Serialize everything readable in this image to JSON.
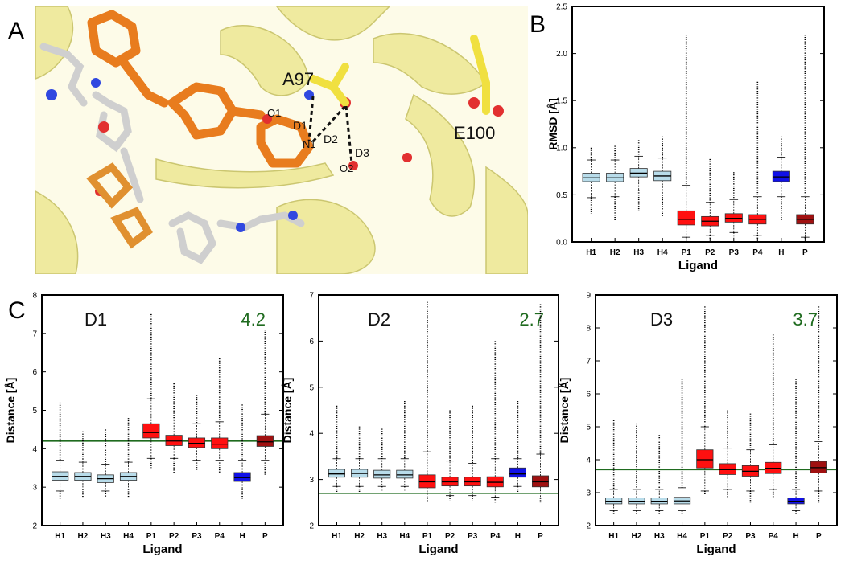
{
  "panel_labels": {
    "a": "A",
    "b": "B",
    "c": "C"
  },
  "structure_labels": {
    "a97": "A97",
    "e100": "E100",
    "o1": "O1",
    "n1": "N1",
    "o2": "O2",
    "d1": "D1",
    "d2": "D2",
    "d3": "D3"
  },
  "colors": {
    "light_blue": "#b8dcea",
    "red": "#ff1010",
    "blue": "#1010e8",
    "dark_red": "#a01010",
    "reference_line": "#1f6b1f",
    "reference_text": "#1f6b1f",
    "protein": "#f4f0a8",
    "ligand_orange": "#e87c1e"
  },
  "chart_data": [
    {
      "id": "rmsd",
      "type": "box",
      "title": "",
      "xlabel": "Ligand",
      "ylabel": "RMSD [Å]",
      "ylim": [
        0,
        2.5
      ],
      "yticks": [
        0.0,
        0.5,
        1.0,
        1.5,
        2.0,
        2.5
      ],
      "ytick_labels": [
        "0.0",
        "0.5",
        "1.0",
        "1.5",
        "2.0",
        "2.5"
      ],
      "categories": [
        "H1",
        "H2",
        "H3",
        "H4",
        "P1",
        "P2",
        "P3",
        "P4",
        "H",
        "P"
      ],
      "box_colors": [
        "light_blue",
        "light_blue",
        "light_blue",
        "light_blue",
        "red",
        "red",
        "red",
        "red",
        "blue",
        "dark_red"
      ],
      "boxes": [
        {
          "q1": 0.64,
          "median": 0.68,
          "q3": 0.73,
          "whisker_low": 0.47,
          "whisker_high": 0.87,
          "out_low": 0.3,
          "out_high": 1.0
        },
        {
          "q1": 0.64,
          "median": 0.68,
          "q3": 0.73,
          "whisker_low": 0.48,
          "whisker_high": 0.87,
          "out_low": 0.22,
          "out_high": 1.02
        },
        {
          "q1": 0.69,
          "median": 0.73,
          "q3": 0.78,
          "whisker_low": 0.55,
          "whisker_high": 0.91,
          "out_low": 0.33,
          "out_high": 1.08
        },
        {
          "q1": 0.65,
          "median": 0.7,
          "q3": 0.75,
          "whisker_low": 0.5,
          "whisker_high": 0.89,
          "out_low": 0.27,
          "out_high": 1.12
        },
        {
          "q1": 0.18,
          "median": 0.24,
          "q3": 0.33,
          "whisker_low": 0.05,
          "whisker_high": 0.6,
          "out_low": 0.02,
          "out_high": 2.2
        },
        {
          "q1": 0.17,
          "median": 0.22,
          "q3": 0.27,
          "whisker_low": 0.07,
          "whisker_high": 0.42,
          "out_low": 0.03,
          "out_high": 0.88
        },
        {
          "q1": 0.21,
          "median": 0.25,
          "q3": 0.3,
          "whisker_low": 0.1,
          "whisker_high": 0.45,
          "out_low": 0.05,
          "out_high": 0.74
        },
        {
          "q1": 0.19,
          "median": 0.24,
          "q3": 0.29,
          "whisker_low": 0.07,
          "whisker_high": 0.48,
          "out_low": 0.03,
          "out_high": 1.7
        },
        {
          "q1": 0.64,
          "median": 0.69,
          "q3": 0.75,
          "whisker_low": 0.48,
          "whisker_high": 0.9,
          "out_low": 0.22,
          "out_high": 1.12
        },
        {
          "q1": 0.19,
          "median": 0.24,
          "q3": 0.29,
          "whisker_low": 0.05,
          "whisker_high": 0.48,
          "out_low": 0.02,
          "out_high": 2.2
        }
      ],
      "reference_line": null,
      "reference_label": ""
    },
    {
      "id": "D1",
      "type": "box",
      "title": "D1",
      "xlabel": "Ligand",
      "ylabel": "Distance [Å]",
      "ylim": [
        2,
        8
      ],
      "yticks": [
        2,
        3,
        4,
        5,
        6,
        7,
        8
      ],
      "ytick_labels": [
        "2",
        "3",
        "4",
        "5",
        "6",
        "7",
        "8"
      ],
      "categories": [
        "H1",
        "H2",
        "H3",
        "H4",
        "P1",
        "P2",
        "P3",
        "P4",
        "H",
        "P"
      ],
      "box_colors": [
        "light_blue",
        "light_blue",
        "light_blue",
        "light_blue",
        "red",
        "red",
        "red",
        "red",
        "blue",
        "dark_red"
      ],
      "boxes": [
        {
          "q1": 3.18,
          "median": 3.28,
          "q3": 3.4,
          "whisker_low": 2.9,
          "whisker_high": 3.7,
          "out_low": 2.7,
          "out_high": 5.2
        },
        {
          "q1": 3.18,
          "median": 3.28,
          "q3": 3.38,
          "whisker_low": 2.95,
          "whisker_high": 3.65,
          "out_low": 2.75,
          "out_high": 4.45
        },
        {
          "q1": 3.12,
          "median": 3.22,
          "q3": 3.32,
          "whisker_low": 2.9,
          "whisker_high": 3.6,
          "out_low": 2.75,
          "out_high": 4.5
        },
        {
          "q1": 3.18,
          "median": 3.28,
          "q3": 3.38,
          "whisker_low": 2.95,
          "whisker_high": 3.65,
          "out_low": 2.75,
          "out_high": 4.8
        },
        {
          "q1": 4.28,
          "median": 4.42,
          "q3": 4.65,
          "whisker_low": 3.75,
          "whisker_high": 5.3,
          "out_low": 3.5,
          "out_high": 7.5
        },
        {
          "q1": 4.08,
          "median": 4.2,
          "q3": 4.35,
          "whisker_low": 3.75,
          "whisker_high": 4.75,
          "out_low": 3.35,
          "out_high": 5.7
        },
        {
          "q1": 4.03,
          "median": 4.14,
          "q3": 4.28,
          "whisker_low": 3.7,
          "whisker_high": 4.65,
          "out_low": 3.45,
          "out_high": 5.4
        },
        {
          "q1": 4.0,
          "median": 4.12,
          "q3": 4.28,
          "whisker_low": 3.7,
          "whisker_high": 4.7,
          "out_low": 3.35,
          "out_high": 6.35
        },
        {
          "q1": 3.15,
          "median": 3.25,
          "q3": 3.38,
          "whisker_low": 2.95,
          "whisker_high": 3.7,
          "out_low": 2.7,
          "out_high": 5.15
        },
        {
          "q1": 4.06,
          "median": 4.18,
          "q3": 4.34,
          "whisker_low": 3.7,
          "whisker_high": 4.9,
          "out_low": 3.3,
          "out_high": 7.1
        }
      ],
      "reference_line": 4.2,
      "reference_label": "4.2"
    },
    {
      "id": "D2",
      "type": "box",
      "title": "D2",
      "xlabel": "Ligand",
      "ylabel": "Distance [Å]",
      "ylim": [
        2,
        7
      ],
      "yticks": [
        2,
        3,
        4,
        5,
        6,
        7
      ],
      "ytick_labels": [
        "2",
        "3",
        "4",
        "5",
        "6",
        "7"
      ],
      "categories": [
        "H1",
        "H2",
        "H3",
        "H4",
        "P1",
        "P2",
        "P3",
        "P4",
        "H",
        "P"
      ],
      "box_colors": [
        "light_blue",
        "light_blue",
        "light_blue",
        "light_blue",
        "red",
        "red",
        "red",
        "red",
        "blue",
        "dark_red"
      ],
      "boxes": [
        {
          "q1": 3.05,
          "median": 3.12,
          "q3": 3.22,
          "whisker_low": 2.85,
          "whisker_high": 3.45,
          "out_low": 2.7,
          "out_high": 4.6
        },
        {
          "q1": 3.05,
          "median": 3.13,
          "q3": 3.22,
          "whisker_low": 2.85,
          "whisker_high": 3.45,
          "out_low": 2.7,
          "out_high": 4.15
        },
        {
          "q1": 3.03,
          "median": 3.1,
          "q3": 3.2,
          "whisker_low": 2.85,
          "whisker_high": 3.45,
          "out_low": 2.75,
          "out_high": 4.1
        },
        {
          "q1": 3.03,
          "median": 3.1,
          "q3": 3.2,
          "whisker_low": 2.85,
          "whisker_high": 3.45,
          "out_low": 2.75,
          "out_high": 4.7
        },
        {
          "q1": 2.82,
          "median": 2.95,
          "q3": 3.1,
          "whisker_low": 2.6,
          "whisker_high": 3.6,
          "out_low": 2.52,
          "out_high": 6.85
        },
        {
          "q1": 2.86,
          "median": 2.95,
          "q3": 3.05,
          "whisker_low": 2.65,
          "whisker_high": 3.4,
          "out_low": 2.55,
          "out_high": 4.5
        },
        {
          "q1": 2.86,
          "median": 2.95,
          "q3": 3.05,
          "whisker_low": 2.65,
          "whisker_high": 3.35,
          "out_low": 2.55,
          "out_high": 4.6
        },
        {
          "q1": 2.84,
          "median": 2.94,
          "q3": 3.06,
          "whisker_low": 2.62,
          "whisker_high": 3.45,
          "out_low": 2.5,
          "out_high": 6.0
        },
        {
          "q1": 3.05,
          "median": 3.12,
          "q3": 3.25,
          "whisker_low": 2.85,
          "whisker_high": 3.45,
          "out_low": 2.7,
          "out_high": 4.7
        },
        {
          "q1": 2.84,
          "median": 2.95,
          "q3": 3.08,
          "whisker_low": 2.6,
          "whisker_high": 3.55,
          "out_low": 2.5,
          "out_high": 6.8
        }
      ],
      "reference_line": 2.7,
      "reference_label": "2.7"
    },
    {
      "id": "D3",
      "type": "box",
      "title": "D3",
      "xlabel": "Ligand",
      "ylabel": "Distance [Å]",
      "ylim": [
        2,
        9
      ],
      "yticks": [
        2,
        3,
        4,
        5,
        6,
        7,
        8,
        9
      ],
      "ytick_labels": [
        "2",
        "3",
        "4",
        "5",
        "6",
        "7",
        "8",
        "9"
      ],
      "categories": [
        "H1",
        "H2",
        "H3",
        "H4",
        "P1",
        "P2",
        "P3",
        "P4",
        "H",
        "P"
      ],
      "box_colors": [
        "light_blue",
        "light_blue",
        "light_blue",
        "light_blue",
        "red",
        "red",
        "red",
        "red",
        "blue",
        "dark_red"
      ],
      "boxes": [
        {
          "q1": 2.66,
          "median": 2.74,
          "q3": 2.84,
          "whisker_low": 2.45,
          "whisker_high": 3.1,
          "out_low": 2.35,
          "out_high": 5.2
        },
        {
          "q1": 2.66,
          "median": 2.74,
          "q3": 2.84,
          "whisker_low": 2.45,
          "whisker_high": 3.1,
          "out_low": 2.35,
          "out_high": 5.1
        },
        {
          "q1": 2.66,
          "median": 2.74,
          "q3": 2.84,
          "whisker_low": 2.45,
          "whisker_high": 3.1,
          "out_low": 2.35,
          "out_high": 4.75
        },
        {
          "q1": 2.66,
          "median": 2.75,
          "q3": 2.86,
          "whisker_low": 2.45,
          "whisker_high": 3.15,
          "out_low": 2.35,
          "out_high": 6.45
        },
        {
          "q1": 3.75,
          "median": 4.0,
          "q3": 4.3,
          "whisker_low": 3.05,
          "whisker_high": 5.0,
          "out_low": 2.95,
          "out_high": 8.65
        },
        {
          "q1": 3.55,
          "median": 3.7,
          "q3": 3.88,
          "whisker_low": 3.1,
          "whisker_high": 4.35,
          "out_low": 2.85,
          "out_high": 5.5
        },
        {
          "q1": 3.5,
          "median": 3.65,
          "q3": 3.82,
          "whisker_low": 3.05,
          "whisker_high": 4.3,
          "out_low": 2.7,
          "out_high": 5.4
        },
        {
          "q1": 3.58,
          "median": 3.74,
          "q3": 3.92,
          "whisker_low": 3.1,
          "whisker_high": 4.45,
          "out_low": 2.85,
          "out_high": 7.8
        },
        {
          "q1": 2.66,
          "median": 2.74,
          "q3": 2.84,
          "whisker_low": 2.45,
          "whisker_high": 3.1,
          "out_low": 2.35,
          "out_high": 6.45
        },
        {
          "q1": 3.6,
          "median": 3.76,
          "q3": 3.95,
          "whisker_low": 3.05,
          "whisker_high": 4.55,
          "out_low": 2.7,
          "out_high": 8.65
        }
      ],
      "reference_line": 3.7,
      "reference_label": "3.7"
    }
  ]
}
